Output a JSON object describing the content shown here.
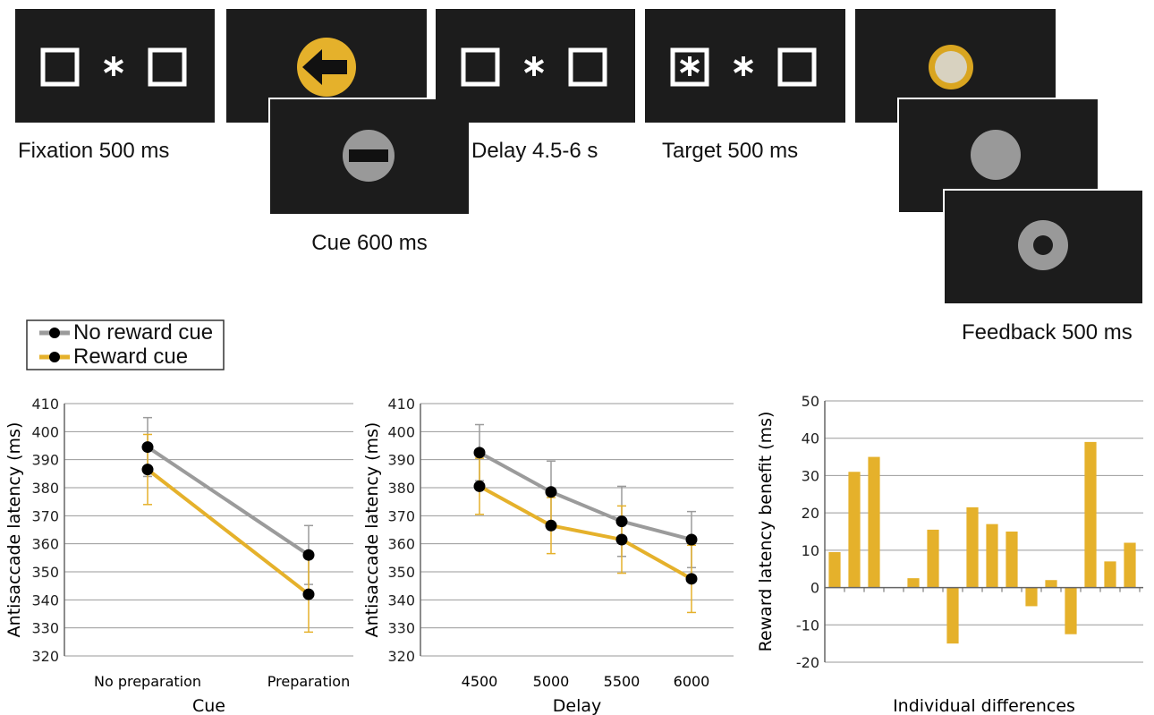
{
  "task_diagram": {
    "panels": [
      {
        "label": "Fixation 500 ms"
      },
      {
        "label": "Cue 600 ms"
      },
      {
        "label": "Delay 4.5-6 s"
      },
      {
        "label": "Target 500 ms"
      },
      {
        "label": "Feedback 500 ms"
      }
    ]
  },
  "chart_data": [
    {
      "type": "line",
      "categories": [
        "No preparation",
        "Preparation"
      ],
      "x_label": "Cue",
      "y_label": "Antisaccade latency (ms)",
      "series": [
        {
          "name": "No reward cue",
          "color": "#9b9b9b",
          "values": [
            394.5,
            356
          ],
          "errors": [
            10.5,
            10.5
          ]
        },
        {
          "name": "Reward cue",
          "color": "#e5b12b",
          "values": [
            386.5,
            342
          ],
          "errors": [
            12.5,
            13.5
          ]
        }
      ],
      "ylim": [
        320,
        410
      ],
      "yticks": [
        320,
        330,
        340,
        350,
        360,
        370,
        380,
        390,
        400,
        410
      ],
      "grid": true
    },
    {
      "type": "line",
      "categories": [
        "4500",
        "5000",
        "5500",
        "6000"
      ],
      "x_label": "Delay",
      "y_label": "Antisaccade latency (ms)",
      "series": [
        {
          "name": "No reward cue",
          "color": "#9b9b9b",
          "values": [
            392.5,
            378.5,
            368,
            361.5
          ],
          "errors": [
            10,
            11,
            12.5,
            10
          ]
        },
        {
          "name": "Reward cue",
          "color": "#e5b12b",
          "values": [
            380.5,
            366.5,
            361.5,
            347.5
          ],
          "errors": [
            10,
            10,
            12,
            12
          ]
        }
      ],
      "ylim": [
        320,
        410
      ],
      "yticks": [
        320,
        330,
        340,
        350,
        360,
        370,
        380,
        390,
        400,
        410
      ],
      "grid": true
    },
    {
      "type": "bar",
      "x_label": "Individual differences",
      "y_label": "Reward latency benefit (ms)",
      "color": "#e5b12b",
      "values": [
        9.5,
        31,
        35,
        null,
        2.5,
        15.5,
        -15,
        21.5,
        17,
        15,
        -5,
        2,
        -12.5,
        39,
        7,
        12
      ],
      "ylim": [
        -20,
        50
      ],
      "yticks": [
        -20,
        -10,
        0,
        10,
        20,
        30,
        40,
        50
      ],
      "grid": true
    }
  ]
}
